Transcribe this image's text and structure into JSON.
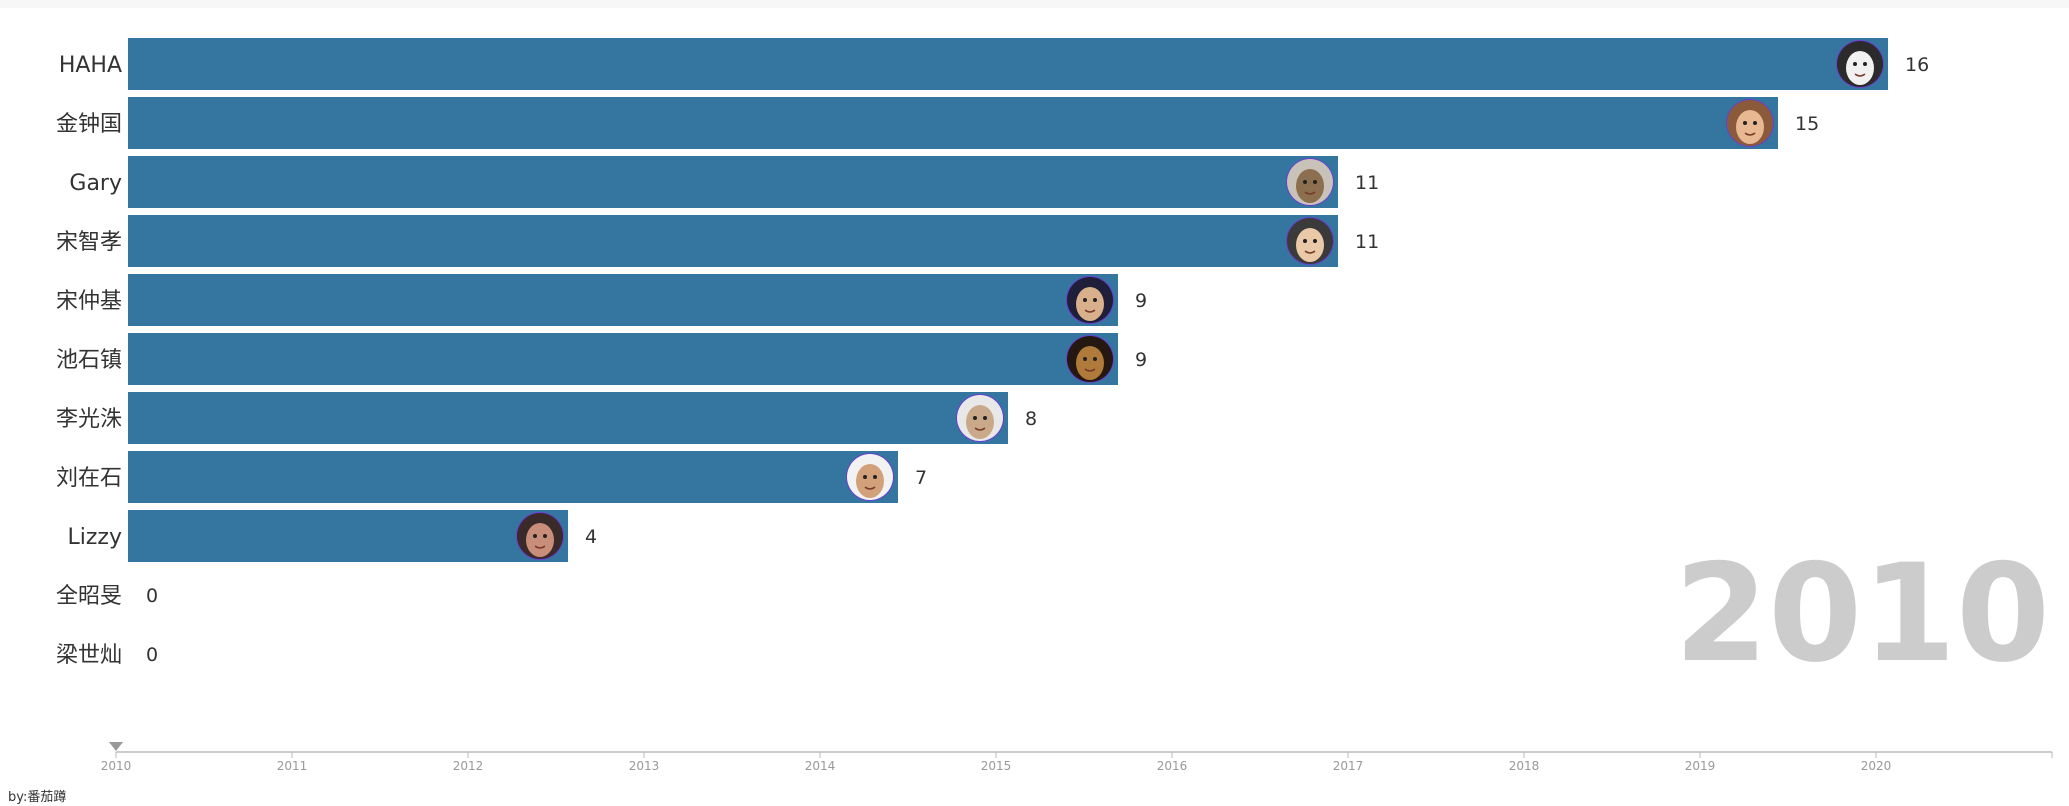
{
  "chart_data": {
    "type": "bar",
    "orientation": "horizontal",
    "current_year_label": "2010",
    "categories": [
      "HAHA",
      "金钟国",
      "Gary",
      "宋智孝",
      "宋仲基",
      "池石镇",
      "李光洙",
      "刘在石",
      "Lizzy",
      "全昭旻",
      "梁世灿"
    ],
    "values": [
      16,
      15,
      11,
      11,
      9,
      9,
      8,
      7,
      4,
      0,
      0
    ],
    "avatars": [
      "avatar-haha",
      "avatar-kim-jongkook",
      "avatar-gary",
      "avatar-song-jihyo",
      "avatar-song-joongki",
      "avatar-ji-sukjin",
      "avatar-lee-kwangsoo",
      "avatar-yoo-jaesuk",
      "avatar-lizzy",
      "",
      ""
    ],
    "bar_color": "#3476a0",
    "timeline": {
      "ticks": [
        "2010",
        "2011",
        "2012",
        "2013",
        "2014",
        "2015",
        "2016",
        "2017",
        "2018",
        "2019",
        "2020"
      ],
      "current": "2010"
    }
  },
  "credit": "by:番茄蹲"
}
